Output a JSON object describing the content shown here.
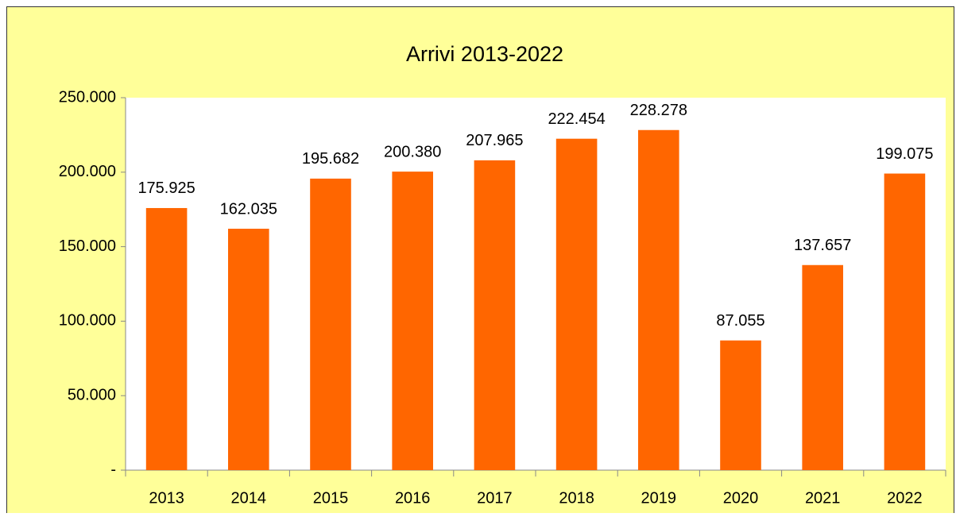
{
  "chart_data": {
    "type": "bar",
    "title": "Arrivi 2013-2022",
    "categories": [
      "2013",
      "2014",
      "2015",
      "2016",
      "2017",
      "2018",
      "2019",
      "2020",
      "2021",
      "2022"
    ],
    "values": [
      175925,
      162035,
      195682,
      200380,
      207965,
      222454,
      228278,
      87055,
      137657,
      199075
    ],
    "value_labels": [
      "175.925",
      "162.035",
      "195.682",
      "200.380",
      "207.965",
      "222.454",
      "228.278",
      "87.055",
      "137.657",
      "199.075"
    ],
    "color": "#ff6600",
    "ylim": [
      0,
      250000
    ],
    "yticks": [
      {
        "value": 0,
        "label": "-"
      },
      {
        "value": 50000,
        "label": "50.000"
      },
      {
        "value": 100000,
        "label": "100.000"
      },
      {
        "value": 150000,
        "label": "150.000"
      },
      {
        "value": 200000,
        "label": "200.000"
      },
      {
        "value": 250000,
        "label": "250.000"
      }
    ],
    "grid": false
  }
}
